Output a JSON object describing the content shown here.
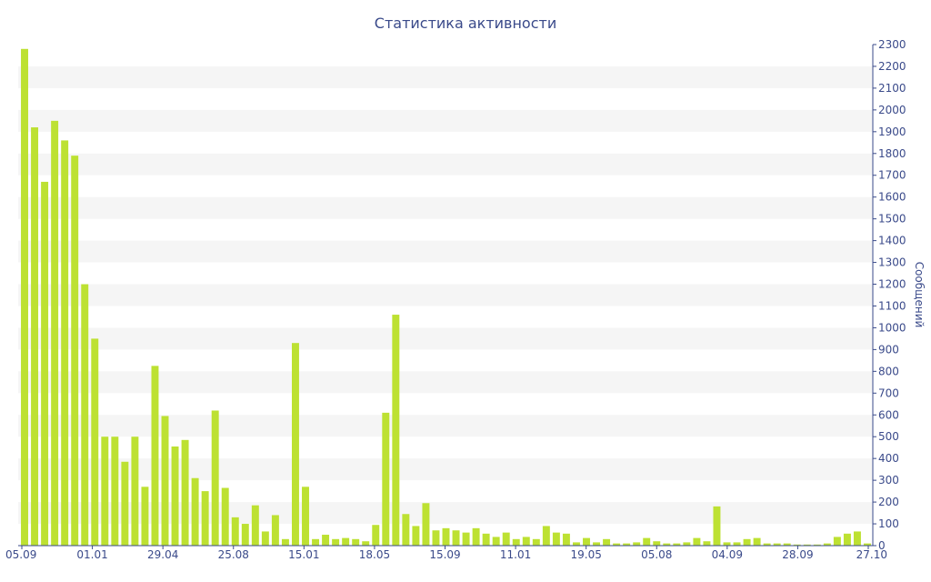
{
  "chart_data": {
    "type": "bar",
    "title": "Статистика активности",
    "ylabel": "Сообщений",
    "ylim": [
      0,
      2300
    ],
    "y_ticks": [
      0,
      100,
      200,
      300,
      400,
      500,
      600,
      700,
      800,
      900,
      1000,
      1100,
      1200,
      1300,
      1400,
      1500,
      1600,
      1700,
      1800,
      1900,
      2000,
      2100,
      2200,
      2300
    ],
    "x_tick_labels": [
      "05.09",
      "01.01",
      "29.04",
      "25.08",
      "15.01",
      "18.05",
      "15.09",
      "11.01",
      "19.05",
      "05.08",
      "04.09",
      "28.09",
      "27.10"
    ],
    "grid": "horizontal banded",
    "y_axis_position": "right",
    "colors": {
      "bar": "#bde132",
      "band": "#f5f5f5",
      "text": "#3a4a8a",
      "axis": "#3a4a8a"
    },
    "values": [
      2280,
      1920,
      1670,
      1950,
      1860,
      1790,
      1200,
      950,
      500,
      500,
      385,
      500,
      270,
      825,
      595,
      455,
      485,
      310,
      250,
      620,
      265,
      130,
      100,
      185,
      65,
      140,
      30,
      930,
      270,
      30,
      50,
      30,
      35,
      30,
      20,
      95,
      610,
      1060,
      145,
      90,
      195,
      70,
      80,
      70,
      60,
      80,
      55,
      40,
      60,
      30,
      40,
      30,
      90,
      60,
      55,
      15,
      35,
      15,
      30,
      10,
      10,
      15,
      35,
      20,
      10,
      10,
      15,
      35,
      20,
      180,
      15,
      15,
      30,
      35,
      10,
      10,
      10,
      5,
      5,
      5,
      10,
      40,
      55,
      65,
      10
    ]
  }
}
